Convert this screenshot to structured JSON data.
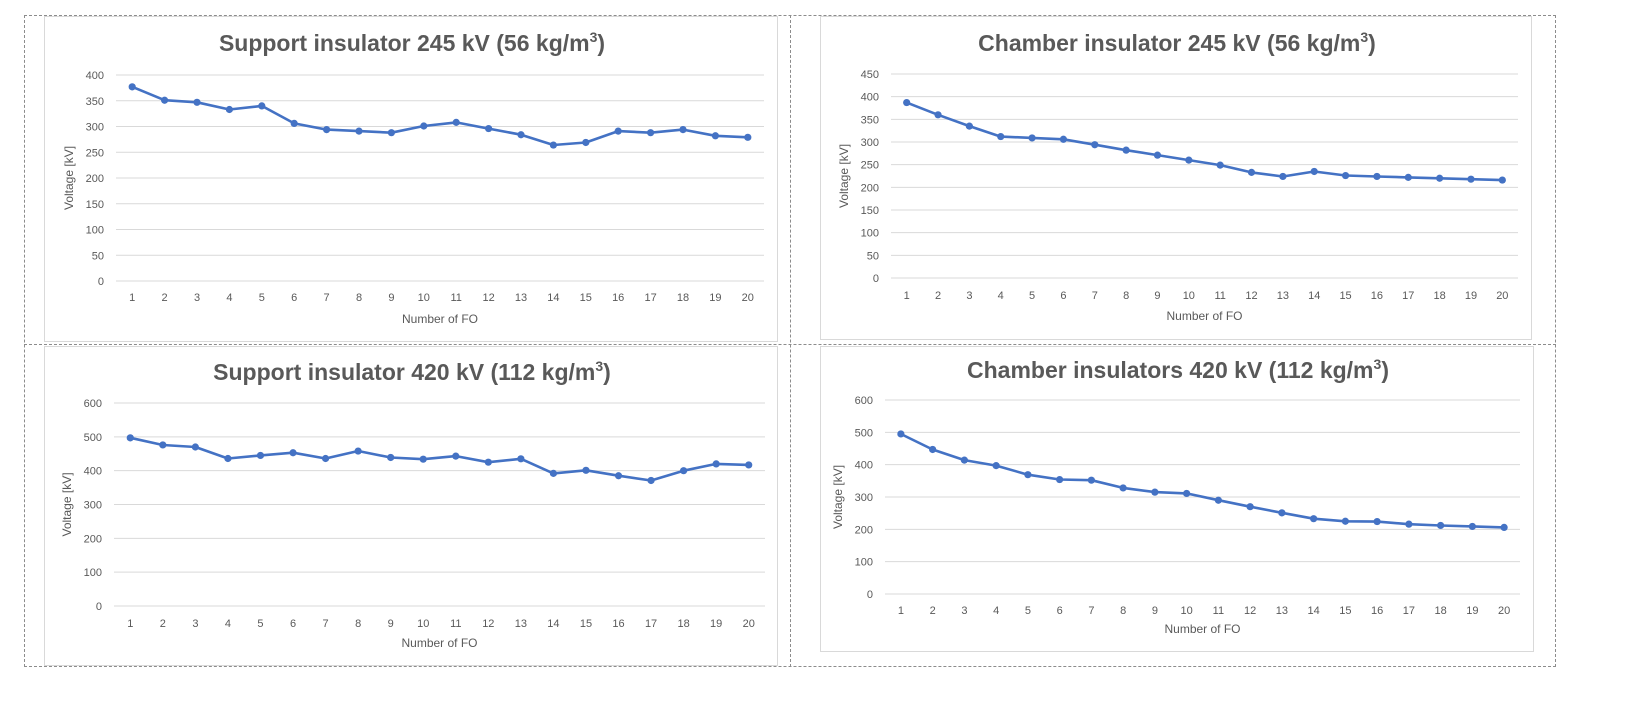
{
  "colors": {
    "series": "#4472c4",
    "grid": "#d9d9d9",
    "text": "#595959",
    "title": "#595959"
  },
  "chart_data": [
    {
      "type": "line",
      "title": "Support insulator 245 kV (56 kg/m",
      "title_sup": "3",
      "title_close": ")",
      "xlabel": "Number of FO",
      "ylabel": "Voltage [kV]",
      "categories": [
        "1",
        "2",
        "3",
        "4",
        "5",
        "6",
        "7",
        "8",
        "9",
        "10",
        "11",
        "12",
        "13",
        "14",
        "15",
        "16",
        "17",
        "18",
        "19",
        "20"
      ],
      "yticks": [
        "0",
        "50",
        "100",
        "150",
        "200",
        "250",
        "300",
        "350",
        "400"
      ],
      "ylim": [
        0,
        400
      ],
      "grid": true,
      "values": [
        377,
        351,
        347,
        333,
        340,
        306,
        294,
        291,
        288,
        301,
        308,
        296,
        284,
        264,
        269,
        291,
        288,
        294,
        282,
        279
      ]
    },
    {
      "type": "line",
      "title": "Chamber insulator 245 kV (56 kg/m",
      "title_sup": "3",
      "title_close": ")",
      "xlabel": "Number of FO",
      "ylabel": "Voltage [kV]",
      "categories": [
        "1",
        "2",
        "3",
        "4",
        "5",
        "6",
        "7",
        "8",
        "9",
        "10",
        "11",
        "12",
        "13",
        "14",
        "15",
        "16",
        "17",
        "18",
        "19",
        "20"
      ],
      "yticks": [
        "0",
        "50",
        "100",
        "150",
        "200",
        "250",
        "300",
        "350",
        "400",
        "450"
      ],
      "ylim": [
        0,
        450
      ],
      "grid": true,
      "values": [
        387,
        360,
        335,
        312,
        309,
        306,
        294,
        282,
        271,
        260,
        249,
        233,
        224,
        235,
        226,
        224,
        222,
        220,
        218,
        216
      ]
    },
    {
      "type": "line",
      "title": "Support insulator 420 kV (112 kg/m",
      "title_sup": "3",
      "title_close": ")",
      "xlabel": "Number of FO",
      "ylabel": "Voltage [kV]",
      "categories": [
        "1",
        "2",
        "3",
        "4",
        "5",
        "6",
        "7",
        "8",
        "9",
        "10",
        "11",
        "12",
        "13",
        "14",
        "15",
        "16",
        "17",
        "18",
        "19",
        "20"
      ],
      "yticks": [
        "0",
        "100",
        "200",
        "300",
        "400",
        "500",
        "600"
      ],
      "ylim": [
        0,
        600
      ],
      "grid": true,
      "values": [
        497,
        476,
        470,
        436,
        445,
        453,
        436,
        458,
        439,
        434,
        443,
        425,
        435,
        392,
        401,
        385,
        371,
        400,
        420,
        417
      ]
    },
    {
      "type": "line",
      "title": "Chamber insulators 420 kV (112 kg/m",
      "title_sup": "3",
      "title_close": ")",
      "xlabel": "Number of FO",
      "ylabel": "Voltage [kV]",
      "categories": [
        "1",
        "2",
        "3",
        "4",
        "5",
        "6",
        "7",
        "8",
        "9",
        "10",
        "11",
        "12",
        "13",
        "14",
        "15",
        "16",
        "17",
        "18",
        "19",
        "20"
      ],
      "yticks": [
        "0",
        "100",
        "200",
        "300",
        "400",
        "500",
        "600"
      ],
      "ylim": [
        0,
        600
      ],
      "grid": true,
      "values": [
        495,
        447,
        414,
        397,
        369,
        354,
        352,
        328,
        315,
        311,
        290,
        270,
        251,
        233,
        225,
        224,
        216,
        212,
        209,
        206
      ]
    }
  ]
}
